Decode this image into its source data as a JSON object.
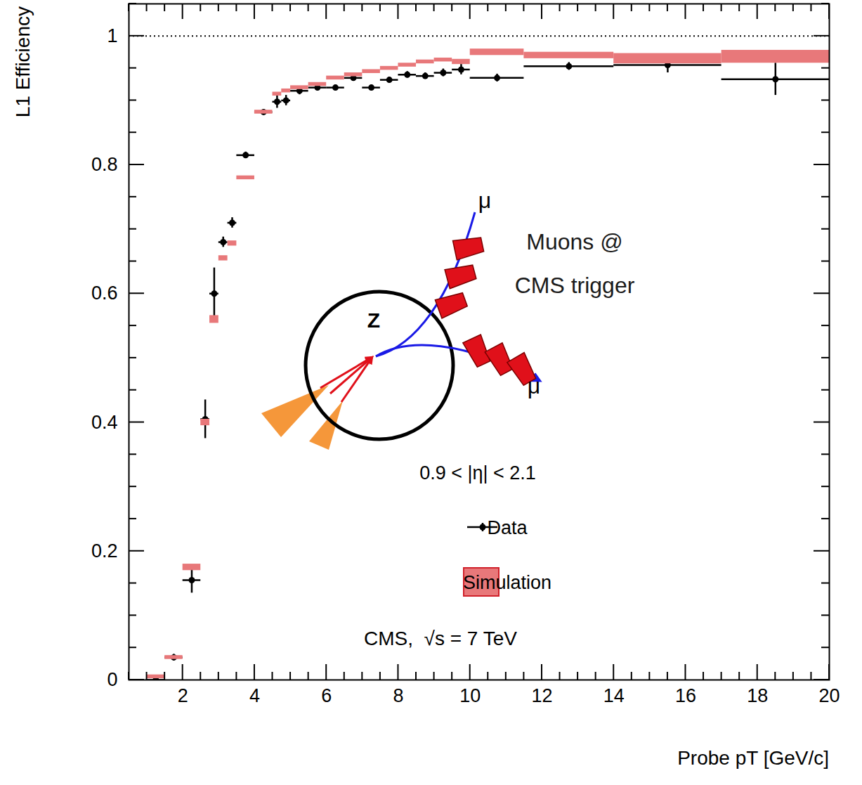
{
  "chart_data": {
    "type": "errorbar",
    "x_label": "Probe pT [GeV/c]",
    "y_label": "L1 Efficiency",
    "xlim": [
      0.5,
      20
    ],
    "ylim": [
      0,
      1.05
    ],
    "xticks": [
      2,
      4,
      6,
      8,
      10,
      12,
      14,
      16,
      18,
      20
    ],
    "yticks": [
      0,
      0.2,
      0.4,
      0.6,
      0.8,
      1
    ],
    "bins": [
      1,
      1.5,
      2,
      2.5,
      2.75,
      3,
      3.25,
      3.5,
      4,
      4.5,
      4.75,
      5,
      5.5,
      6,
      6.5,
      7,
      7.5,
      8,
      8.5,
      9,
      9.5,
      10,
      11.5,
      14,
      17,
      20
    ],
    "series": [
      {
        "name": "Data",
        "color": "#000000",
        "marker": "dot",
        "values": [
          0.0,
          0.035,
          0.155,
          0.405,
          0.6,
          0.68,
          0.71,
          0.815,
          0.882,
          0.898,
          0.9,
          0.915,
          0.92,
          0.92,
          0.935,
          0.92,
          0.932,
          0.94,
          0.938,
          0.943,
          0.948,
          0.935,
          0.953,
          0.955,
          0.933
        ],
        "errors": [
          0.003,
          0.005,
          0.02,
          0.03,
          0.04,
          0.008,
          0.008,
          0.005,
          0.004,
          0.01,
          0.008,
          0.006,
          0.004,
          0.004,
          0.004,
          0.004,
          0.004,
          0.005,
          0.005,
          0.006,
          0.008,
          0.006,
          0.006,
          0.012,
          0.025
        ]
      },
      {
        "name": "Simulation",
        "color": "#e8787a",
        "type": "band",
        "values": [
          0.005,
          0.035,
          0.175,
          0.4,
          0.56,
          0.655,
          0.678,
          0.78,
          0.882,
          0.91,
          0.915,
          0.92,
          0.925,
          0.935,
          0.94,
          0.945,
          0.95,
          0.955,
          0.96,
          0.963,
          0.96,
          0.975,
          0.97,
          0.965,
          0.968
        ],
        "errors": [
          0.003,
          0.003,
          0.005,
          0.005,
          0.006,
          0.004,
          0.004,
          0.003,
          0.003,
          0.003,
          0.003,
          0.003,
          0.003,
          0.003,
          0.003,
          0.003,
          0.003,
          0.003,
          0.003,
          0.003,
          0.004,
          0.005,
          0.005,
          0.008,
          0.01
        ]
      }
    ],
    "reference_line": 1,
    "legend": "bottom-right",
    "annotations": [
      "0.9 < |η| < 2.1",
      "CMS,  √s = 7 TeV"
    ],
    "diagram": {
      "label": "Z",
      "particles": [
        "μ",
        "μ"
      ],
      "caption": [
        "Muons @",
        "CMS trigger"
      ]
    }
  }
}
